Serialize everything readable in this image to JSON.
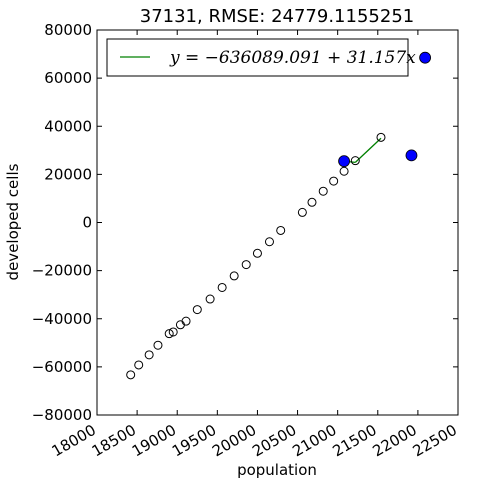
{
  "chart_data": {
    "type": "scatter",
    "title": "37131, RMSE: 24779.1155251",
    "xlabel": "population",
    "ylabel": "developed cells",
    "xlim": [
      18000,
      22500
    ],
    "ylim": [
      -80000,
      80000
    ],
    "xticks": [
      18000,
      18500,
      19000,
      19500,
      20000,
      20500,
      21000,
      21500,
      22000,
      22500
    ],
    "yticks": [
      -80000,
      -60000,
      -40000,
      -20000,
      0,
      20000,
      40000,
      60000,
      80000
    ],
    "xtick_labels": [
      "18000",
      "18500",
      "19000",
      "19500",
      "20000",
      "20500",
      "21000",
      "21500",
      "22000",
      "22500"
    ],
    "ytick_labels": [
      "−80000",
      "−60000",
      "−40000",
      "−20000",
      "0",
      "20000",
      "40000",
      "60000",
      "80000"
    ],
    "grid": false,
    "legend_position": "top",
    "legend_label": "y = −636089.091 + 31.157x",
    "colors": {
      "fit_line": "#008000",
      "observed": "#0000ff",
      "predicted_edge": "#000000",
      "axes": "#000000"
    },
    "fit": {
      "slope": 31.157,
      "intercept": -636089.091
    },
    "fit_segments": [
      {
        "x": [
          21220,
          21540
        ],
        "y": [
          25000,
          35000
        ]
      },
      {
        "x": [
          21080,
          21220
        ],
        "y": [
          25500,
          25000
        ]
      }
    ],
    "predicted_points": [
      {
        "x": 18420,
        "y": -63300
      },
      {
        "x": 18520,
        "y": -59200
      },
      {
        "x": 18650,
        "y": -55000
      },
      {
        "x": 18760,
        "y": -51000
      },
      {
        "x": 18900,
        "y": -46200
      },
      {
        "x": 18950,
        "y": -45500
      },
      {
        "x": 19040,
        "y": -42500
      },
      {
        "x": 19110,
        "y": -41000
      },
      {
        "x": 19250,
        "y": -36200
      },
      {
        "x": 19410,
        "y": -31800
      },
      {
        "x": 19560,
        "y": -27000
      },
      {
        "x": 19710,
        "y": -22200
      },
      {
        "x": 19860,
        "y": -17500
      },
      {
        "x": 20000,
        "y": -12800
      },
      {
        "x": 20150,
        "y": -8000
      },
      {
        "x": 20290,
        "y": -3300
      },
      {
        "x": 20560,
        "y": 4200
      },
      {
        "x": 20680,
        "y": 8400
      },
      {
        "x": 20820,
        "y": 13000
      },
      {
        "x": 20950,
        "y": 17200
      },
      {
        "x": 21080,
        "y": 21300
      },
      {
        "x": 21220,
        "y": 25700
      },
      {
        "x": 21540,
        "y": 35400
      }
    ],
    "observed_points": [
      {
        "x": 21080,
        "y": 25500
      },
      {
        "x": 21920,
        "y": 27900
      },
      {
        "x": 22090,
        "y": 68500
      }
    ]
  }
}
